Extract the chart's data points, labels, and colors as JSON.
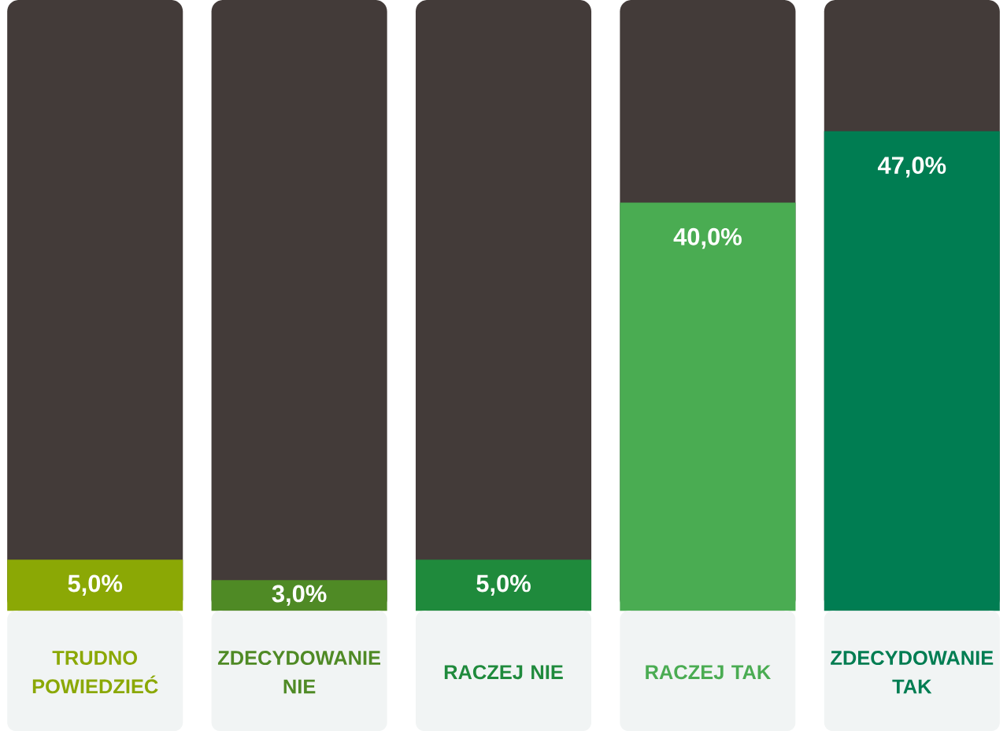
{
  "chart_data": {
    "type": "bar",
    "categories": [
      "TRUDNO POWIEDZIEĆ",
      "ZDECYDOWANIE NIE",
      "RACZEJ NIE",
      "RACZEJ TAK",
      "ZDECYDOWANIE TAK"
    ],
    "values": [
      5,
      3,
      5,
      40,
      47
    ],
    "value_labels": [
      "5,0%",
      "3,0%",
      "5,0%",
      "40,0%",
      "47,0%"
    ],
    "colors": [
      "#8ba805",
      "#4f8a25",
      "#1f8a3c",
      "#4aac52",
      "#007d52"
    ]
  }
}
